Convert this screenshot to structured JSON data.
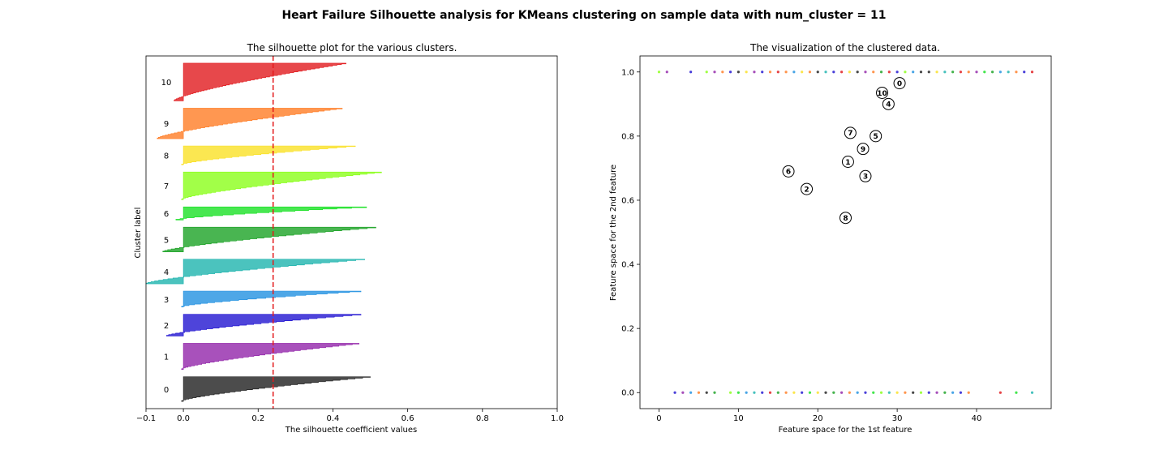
{
  "figure": {
    "suptitle": "Heart Failure Silhouette analysis for KMeans clustering on sample data with num_cluster = 11"
  },
  "chart_data": [
    {
      "type": "area",
      "title": "The silhouette plot for the various clusters.",
      "xlabel": "The silhouette coefficient values",
      "ylabel": "Cluster label",
      "xlim": [
        -0.1,
        1.0
      ],
      "xticks": [
        "−0.1",
        "0.0",
        "0.2",
        "0.4",
        "0.6",
        "0.8",
        "1.0"
      ],
      "xtick_values": [
        -0.1,
        0.0,
        0.2,
        0.4,
        0.6,
        0.8,
        1.0
      ],
      "average_silhouette_score": 0.24,
      "average_line_color": "#e41a1c",
      "grid": false,
      "clusters": [
        {
          "label": "0",
          "color": "#1a1a1a",
          "n_samples": 34,
          "min": -0.005,
          "max": 0.5
        },
        {
          "label": "1",
          "color": "#9020a8",
          "n_samples": 36,
          "min": -0.005,
          "max": 0.47
        },
        {
          "label": "2",
          "color": "#1c0fd0",
          "n_samples": 30,
          "min": -0.045,
          "max": 0.475
        },
        {
          "label": "3",
          "color": "#1c8ee0",
          "n_samples": 22,
          "min": -0.005,
          "max": 0.475
        },
        {
          "label": "4",
          "color": "#18b2ac",
          "n_samples": 34,
          "min": -0.1,
          "max": 0.485
        },
        {
          "label": "5",
          "color": "#16a020",
          "n_samples": 34,
          "min": -0.055,
          "max": 0.515
        },
        {
          "label": "6",
          "color": "#14e020",
          "n_samples": 18,
          "min": -0.02,
          "max": 0.49
        },
        {
          "label": "7",
          "color": "#88ff14",
          "n_samples": 38,
          "min": -0.005,
          "max": 0.53
        },
        {
          "label": "8",
          "color": "#fae020",
          "n_samples": 26,
          "min": -0.005,
          "max": 0.46
        },
        {
          "label": "9",
          "color": "#ff7a20",
          "n_samples": 42,
          "min": -0.07,
          "max": 0.425
        },
        {
          "label": "10",
          "color": "#e01418",
          "n_samples": 52,
          "min": -0.025,
          "max": 0.435
        }
      ]
    },
    {
      "type": "scatter",
      "title": "The visualization of the clustered data.",
      "xlabel": "Feature space for the 1st feature",
      "ylabel": "Feature space for the 2nd feature",
      "xlim": [
        -2.4,
        49.4
      ],
      "ylim": [
        -0.05,
        1.05
      ],
      "xticks": [
        "0",
        "10",
        "20",
        "30",
        "40"
      ],
      "xtick_values": [
        0,
        10,
        20,
        30,
        40
      ],
      "yticks": [
        "0.0",
        "0.2",
        "0.4",
        "0.6",
        "0.8",
        "1.0"
      ],
      "ytick_values": [
        0.0,
        0.2,
        0.4,
        0.6,
        0.8,
        1.0
      ],
      "grid": false,
      "palette": [
        "#1a1a1a",
        "#9020a8",
        "#1c0fd0",
        "#1c8ee0",
        "#18b2ac",
        "#16a020",
        "#14e020",
        "#88ff14",
        "#fae020",
        "#ff7a20",
        "#e01418"
      ],
      "points": [
        {
          "x": 0,
          "y": 1,
          "c": 7
        },
        {
          "x": 1,
          "y": 1,
          "c": 1
        },
        {
          "x": 4,
          "y": 1,
          "c": 2
        },
        {
          "x": 6,
          "y": 1,
          "c": 7
        },
        {
          "x": 7,
          "y": 1,
          "c": 1
        },
        {
          "x": 8,
          "y": 1,
          "c": 9
        },
        {
          "x": 9,
          "y": 1,
          "c": 2
        },
        {
          "x": 10,
          "y": 1,
          "c": 0
        },
        {
          "x": 11,
          "y": 1,
          "c": 8
        },
        {
          "x": 12,
          "y": 1,
          "c": 1
        },
        {
          "x": 13,
          "y": 1,
          "c": 2
        },
        {
          "x": 14,
          "y": 1,
          "c": 9
        },
        {
          "x": 15,
          "y": 1,
          "c": 10
        },
        {
          "x": 16,
          "y": 1,
          "c": 9
        },
        {
          "x": 17,
          "y": 1,
          "c": 3
        },
        {
          "x": 18,
          "y": 1,
          "c": 8
        },
        {
          "x": 19,
          "y": 1,
          "c": 9
        },
        {
          "x": 20,
          "y": 1,
          "c": 0
        },
        {
          "x": 21,
          "y": 1,
          "c": 4
        },
        {
          "x": 22,
          "y": 1,
          "c": 2
        },
        {
          "x": 23,
          "y": 1,
          "c": 10
        },
        {
          "x": 24,
          "y": 1,
          "c": 8
        },
        {
          "x": 25,
          "y": 1,
          "c": 0
        },
        {
          "x": 26,
          "y": 1,
          "c": 1
        },
        {
          "x": 27,
          "y": 1,
          "c": 9
        },
        {
          "x": 28,
          "y": 1,
          "c": 5
        },
        {
          "x": 29,
          "y": 1,
          "c": 10
        },
        {
          "x": 30,
          "y": 1,
          "c": 2
        },
        {
          "x": 31,
          "y": 1,
          "c": 7
        },
        {
          "x": 32,
          "y": 1,
          "c": 3
        },
        {
          "x": 33,
          "y": 1,
          "c": 0
        },
        {
          "x": 34,
          "y": 1,
          "c": 0
        },
        {
          "x": 35,
          "y": 1,
          "c": 8
        },
        {
          "x": 36,
          "y": 1,
          "c": 4
        },
        {
          "x": 37,
          "y": 1,
          "c": 5
        },
        {
          "x": 38,
          "y": 1,
          "c": 10
        },
        {
          "x": 39,
          "y": 1,
          "c": 9
        },
        {
          "x": 40,
          "y": 1,
          "c": 1
        },
        {
          "x": 41,
          "y": 1,
          "c": 6
        },
        {
          "x": 42,
          "y": 1,
          "c": 5
        },
        {
          "x": 43,
          "y": 1,
          "c": 3
        },
        {
          "x": 44,
          "y": 1,
          "c": 4
        },
        {
          "x": 45,
          "y": 1,
          "c": 9
        },
        {
          "x": 46,
          "y": 1,
          "c": 2
        },
        {
          "x": 47,
          "y": 1,
          "c": 10
        },
        {
          "x": 2,
          "y": 0,
          "c": 2
        },
        {
          "x": 3,
          "y": 0,
          "c": 1
        },
        {
          "x": 4,
          "y": 0,
          "c": 3
        },
        {
          "x": 5,
          "y": 0,
          "c": 9
        },
        {
          "x": 6,
          "y": 0,
          "c": 0
        },
        {
          "x": 7,
          "y": 0,
          "c": 5
        },
        {
          "x": 9,
          "y": 0,
          "c": 7
        },
        {
          "x": 10,
          "y": 0,
          "c": 6
        },
        {
          "x": 11,
          "y": 0,
          "c": 3
        },
        {
          "x": 12,
          "y": 0,
          "c": 4
        },
        {
          "x": 13,
          "y": 0,
          "c": 2
        },
        {
          "x": 14,
          "y": 0,
          "c": 10
        },
        {
          "x": 15,
          "y": 0,
          "c": 5
        },
        {
          "x": 16,
          "y": 0,
          "c": 9
        },
        {
          "x": 17,
          "y": 0,
          "c": 8
        },
        {
          "x": 18,
          "y": 0,
          "c": 2
        },
        {
          "x": 19,
          "y": 0,
          "c": 6
        },
        {
          "x": 20,
          "y": 0,
          "c": 8
        },
        {
          "x": 21,
          "y": 0,
          "c": 0
        },
        {
          "x": 22,
          "y": 0,
          "c": 5
        },
        {
          "x": 23,
          "y": 0,
          "c": 1
        },
        {
          "x": 24,
          "y": 0,
          "c": 9
        },
        {
          "x": 25,
          "y": 0,
          "c": 3
        },
        {
          "x": 26,
          "y": 0,
          "c": 2
        },
        {
          "x": 27,
          "y": 0,
          "c": 6
        },
        {
          "x": 28,
          "y": 0,
          "c": 7
        },
        {
          "x": 29,
          "y": 0,
          "c": 4
        },
        {
          "x": 30,
          "y": 0,
          "c": 8
        },
        {
          "x": 31,
          "y": 0,
          "c": 9
        },
        {
          "x": 32,
          "y": 0,
          "c": 0
        },
        {
          "x": 33,
          "y": 0,
          "c": 7
        },
        {
          "x": 34,
          "y": 0,
          "c": 2
        },
        {
          "x": 35,
          "y": 0,
          "c": 1
        },
        {
          "x": 36,
          "y": 0,
          "c": 5
        },
        {
          "x": 37,
          "y": 0,
          "c": 3
        },
        {
          "x": 38,
          "y": 0,
          "c": 2
        },
        {
          "x": 39,
          "y": 0,
          "c": 9
        },
        {
          "x": 43,
          "y": 0,
          "c": 10
        },
        {
          "x": 45,
          "y": 0,
          "c": 6
        },
        {
          "x": 47,
          "y": 0,
          "c": 4
        }
      ],
      "centers": [
        {
          "label": "0",
          "x": 30.3,
          "y": 0.965
        },
        {
          "label": "1",
          "x": 23.8,
          "y": 0.72
        },
        {
          "label": "2",
          "x": 18.6,
          "y": 0.635
        },
        {
          "label": "3",
          "x": 26.0,
          "y": 0.675
        },
        {
          "label": "4",
          "x": 28.9,
          "y": 0.9
        },
        {
          "label": "5",
          "x": 27.3,
          "y": 0.8
        },
        {
          "label": "6",
          "x": 16.3,
          "y": 0.69
        },
        {
          "label": "7",
          "x": 24.1,
          "y": 0.81
        },
        {
          "label": "8",
          "x": 23.5,
          "y": 0.545
        },
        {
          "label": "9",
          "x": 25.7,
          "y": 0.76
        },
        {
          "label": "10",
          "x": 28.1,
          "y": 0.935
        }
      ]
    }
  ]
}
